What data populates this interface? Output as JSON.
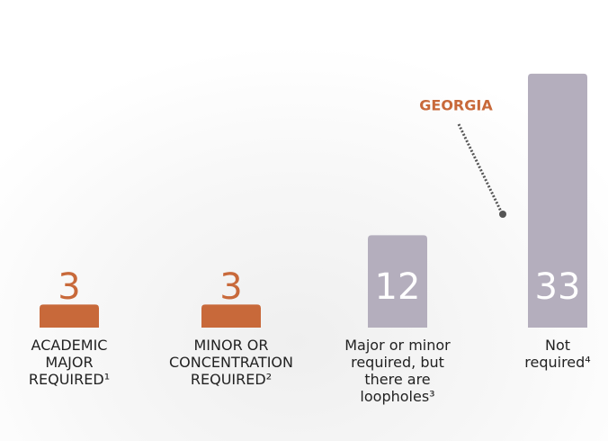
{
  "chart_data": {
    "type": "bar",
    "categories": [
      "ACADEMIC MAJOR REQUIRED¹",
      "MINOR OR CONCENTRATION REQUIRED²",
      "Major or minor required, but there are loopholes³",
      "Not required⁴"
    ],
    "values": [
      3,
      3,
      12,
      33
    ],
    "colors": [
      "#c8693a",
      "#c8693a",
      "#b4aebd",
      "#b4aebd"
    ],
    "annotation": "GEORGIA"
  }
}
